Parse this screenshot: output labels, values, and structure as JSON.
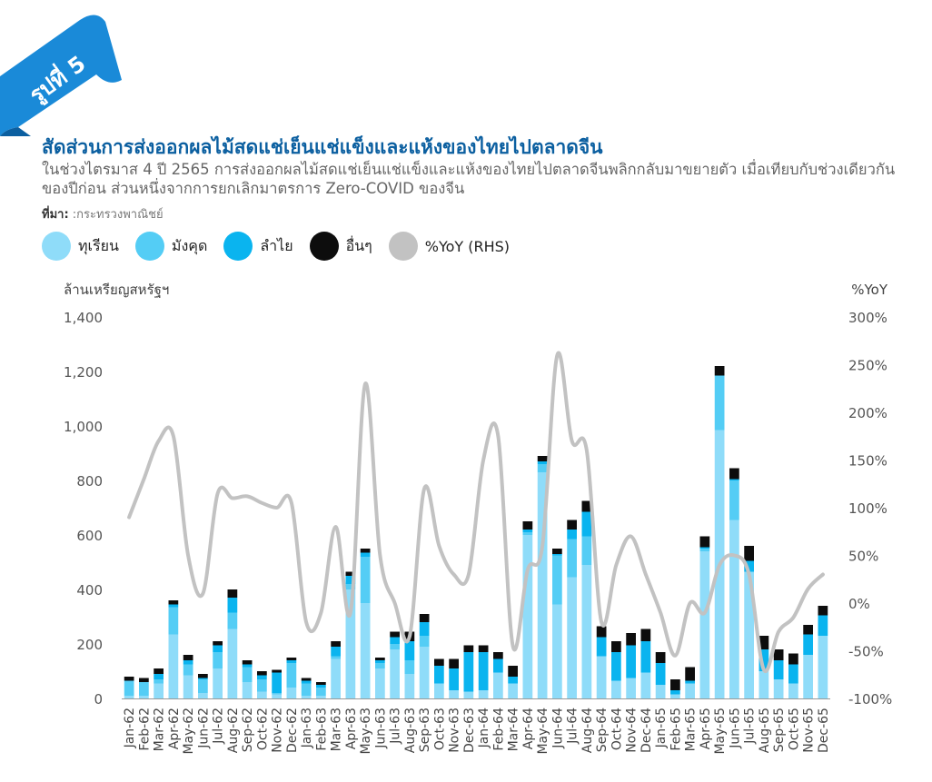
{
  "badge": {
    "text": "รูปที่ 5",
    "color": "#1a8ad8"
  },
  "header": {
    "title": "สัดส่วนการส่งออกผลไม้สดแช่เย็นแช่แข็งและแห้งของไทยไปตลาดจีน",
    "subtitle": "ในช่วงไตรมาส 4 ปี 2565 การส่งออกผลไม้สดแช่เย็นแช่แข็งและแห้งของไทยไปตลาดจีนพลิกกลับมาขยายตัว เมื่อเทียบกับช่วงเดียวกันของปีก่อน ส่วนหนึ่งจากการยกเลิกมาตรการ Zero-COVID ของจีน",
    "source_label": "ที่มา:",
    "source_value": ":กระทรวงพาณิชย์"
  },
  "chart_data": {
    "type": "bar",
    "stacked": true,
    "ylabel": "ล้านเหรียญสหรัฐฯ",
    "y2label": "%YoY",
    "ylim": [
      0,
      1400
    ],
    "y2lim": [
      -100,
      300
    ],
    "yticks": [
      "0",
      "200",
      "400",
      "600",
      "800",
      "1,000",
      "1,200",
      "1,400"
    ],
    "y2ticks": [
      "-100%",
      "-50%",
      "0%",
      "50%",
      "100%",
      "150%",
      "200%",
      "250%",
      "300%"
    ],
    "categories": [
      "Jan-62",
      "Feb-62",
      "Mar-62",
      "Apr-62",
      "May-62",
      "Jun-62",
      "Jul-62",
      "Aug-62",
      "Sep-62",
      "Oct-62",
      "Nov-62",
      "Dec-62",
      "Jan-63",
      "Feb-63",
      "Mar-63",
      "Apr-63",
      "May-63",
      "Jun-63",
      "Jul-63",
      "Aug-63",
      "Sep-63",
      "Oct-63",
      "Nov-63",
      "Dec-63",
      "Jan-64",
      "Feb-64",
      "Mar-64",
      "Apr-64",
      "May-64",
      "Jun-64",
      "Jul-64",
      "Aug-64",
      "Sep-64",
      "Oct-64",
      "Nov-64",
      "Dec-64",
      "Jan-65",
      "Feb-65",
      "Mar-65",
      "Apr-65",
      "May-65",
      "Jun-65",
      "Jul-65",
      "Aug-65",
      "Sep-65",
      "Oct-65",
      "Nov-65",
      "Dec-65"
    ],
    "series": [
      {
        "name": "ทุเรียน",
        "color": "#8fdcf9",
        "values": [
          10,
          10,
          55,
          235,
          85,
          20,
          110,
          255,
          60,
          25,
          15,
          40,
          10,
          10,
          145,
          400,
          350,
          110,
          180,
          90,
          190,
          55,
          30,
          25,
          30,
          95,
          55,
          600,
          830,
          345,
          445,
          490,
          155,
          65,
          75,
          95,
          50,
          15,
          55,
          540,
          985,
          655,
          465,
          100,
          70,
          55,
          160,
          230
        ]
      },
      {
        "name": "มังคุด",
        "color": "#54cdf5",
        "values": [
          55,
          50,
          15,
          100,
          40,
          50,
          60,
          60,
          55,
          45,
          5,
          90,
          45,
          30,
          10,
          20,
          170,
          20,
          20,
          50,
          40,
          0,
          0,
          0,
          0,
          0,
          0,
          10,
          30,
          180,
          140,
          105,
          0,
          0,
          0,
          0,
          0,
          0,
          0,
          10,
          200,
          145,
          0,
          0,
          0,
          0,
          0,
          0
        ]
      },
      {
        "name": "ลำไย",
        "color": "#0ab4ef",
        "values": [
          0,
          0,
          20,
          10,
          15,
          5,
          25,
          55,
          10,
          15,
          75,
          10,
          10,
          10,
          35,
          30,
          15,
          10,
          25,
          70,
          50,
          65,
          80,
          145,
          140,
          50,
          25,
          10,
          10,
          5,
          35,
          90,
          70,
          105,
          120,
          115,
          80,
          15,
          10,
          5,
          0,
          5,
          40,
          80,
          70,
          70,
          75,
          75
        ]
      },
      {
        "name": "อื่นๆ",
        "color": "#0d0d0d",
        "values": [
          15,
          15,
          20,
          15,
          20,
          15,
          15,
          30,
          15,
          15,
          10,
          10,
          10,
          10,
          20,
          15,
          15,
          10,
          20,
          35,
          30,
          25,
          35,
          25,
          25,
          25,
          40,
          30,
          20,
          20,
          35,
          40,
          40,
          40,
          45,
          45,
          40,
          40,
          50,
          40,
          35,
          40,
          55,
          50,
          40,
          40,
          35,
          35
        ]
      },
      {
        "name": "%YoY (RHS)",
        "color": "#c2c2c2",
        "type": "line",
        "axis": "right",
        "values": [
          90,
          130,
          170,
          175,
          50,
          10,
          115,
          110,
          112,
          105,
          100,
          105,
          -20,
          -10,
          80,
          -10,
          230,
          50,
          0,
          -35,
          120,
          60,
          30,
          30,
          150,
          175,
          -45,
          35,
          60,
          260,
          170,
          160,
          -20,
          40,
          70,
          30,
          -10,
          -55,
          0,
          -10,
          40,
          50,
          30,
          -70,
          -30,
          -15,
          15,
          30
        ]
      }
    ]
  }
}
